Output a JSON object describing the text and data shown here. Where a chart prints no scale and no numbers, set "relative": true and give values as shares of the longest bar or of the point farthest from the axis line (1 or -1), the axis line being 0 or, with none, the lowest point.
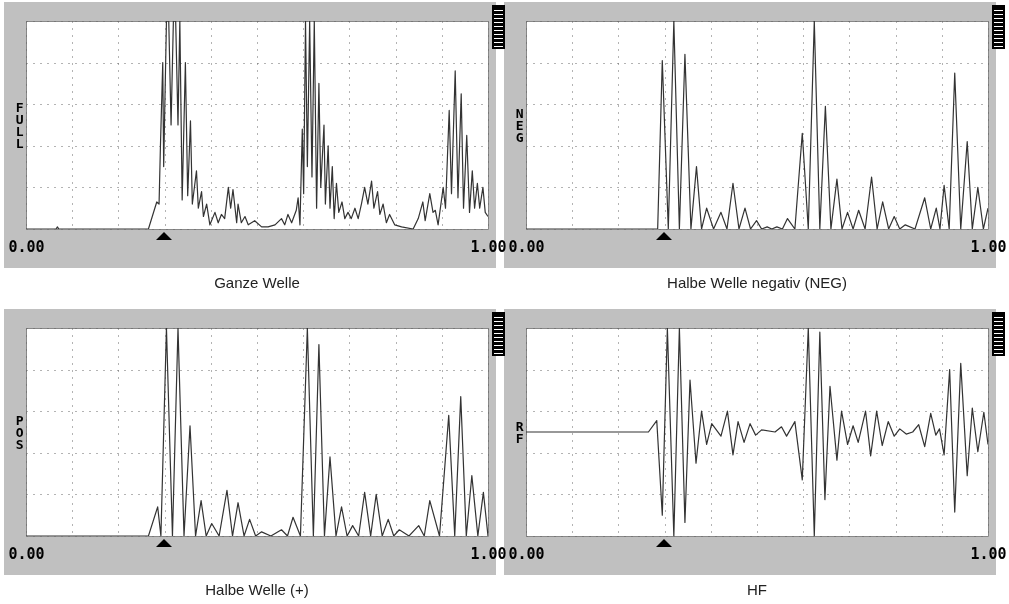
{
  "chart_data": [
    {
      "type": "line",
      "title": "Ganze Welle",
      "ylabel": "FULL",
      "relative": true,
      "grid": true,
      "color": "#333333",
      "xlim": [
        0,
        1
      ],
      "xticks": [
        {
          "value": 0,
          "label": "0.00"
        },
        {
          "value": 0.1,
          "label": null
        },
        {
          "value": 0.2,
          "label": null
        },
        {
          "value": 0.3,
          "label": null
        },
        {
          "value": 0.4,
          "label": null
        },
        {
          "value": 0.5,
          "label": null
        },
        {
          "value": 0.6,
          "label": null
        },
        {
          "value": 0.7,
          "label": null
        },
        {
          "value": 0.8,
          "label": null
        },
        {
          "value": 0.9,
          "label": null
        },
        {
          "value": 1,
          "label": "1.00"
        }
      ],
      "x": [
        0,
        0.065,
        0.068,
        0.071,
        0.265,
        0.283,
        0.288,
        0.291,
        0.296,
        0.298,
        0.304,
        0.309,
        0.314,
        0.319,
        0.324,
        0.329,
        0.333,
        0.338,
        0.345,
        0.35,
        0.356,
        0.36,
        0.369,
        0.373,
        0.38,
        0.384,
        0.391,
        0.398,
        0.409,
        0.416,
        0.423,
        0.43,
        0.438,
        0.443,
        0.448,
        0.456,
        0.459,
        0.466,
        0.474,
        0.481,
        0.495,
        0.51,
        0.524,
        0.539,
        0.553,
        0.56,
        0.567,
        0.575,
        0.585,
        0.589,
        0.593,
        0.598,
        0.601,
        0.605,
        0.609,
        0.614,
        0.619,
        0.624,
        0.629,
        0.634,
        0.638,
        0.645,
        0.648,
        0.654,
        0.658,
        0.663,
        0.667,
        0.672,
        0.677,
        0.684,
        0.69,
        0.697,
        0.704,
        0.712,
        0.719,
        0.726,
        0.733,
        0.74,
        0.748,
        0.753,
        0.761,
        0.766,
        0.773,
        0.78,
        0.787,
        0.798,
        0.813,
        0.838,
        0.849,
        0.859,
        0.864,
        0.874,
        0.881,
        0.886,
        0.892,
        0.903,
        0.908,
        0.916,
        0.921,
        0.929,
        0.935,
        0.942,
        0.947,
        0.954,
        0.96,
        0.966,
        0.971,
        0.977,
        0.982,
        0.989,
        0.994,
        1.0
      ],
      "values": [
        0,
        0,
        0.01,
        0,
        0,
        0.13,
        0.12,
        0.4,
        0.8,
        0.3,
        1,
        1,
        0.5,
        1,
        1,
        0.5,
        1,
        0.14,
        0.8,
        0.16,
        0.52,
        0.12,
        0.28,
        0.1,
        0.18,
        0.06,
        0.12,
        0.02,
        0.08,
        0.03,
        0.07,
        0.05,
        0.2,
        0.1,
        0.19,
        0.03,
        0.12,
        0.03,
        0.06,
        0.02,
        0.04,
        0.01,
        0.01,
        0.02,
        0.05,
        0.02,
        0.07,
        0.03,
        0.09,
        0.15,
        0.02,
        0.48,
        0.17,
        1,
        0.3,
        1,
        0.25,
        1,
        0.1,
        0.7,
        0.2,
        0.5,
        0.12,
        0.4,
        0.1,
        0.3,
        0.05,
        0.22,
        0.08,
        0.13,
        0.05,
        0.08,
        0.05,
        0.1,
        0.05,
        0.12,
        0.2,
        0.12,
        0.23,
        0.1,
        0.18,
        0.07,
        0.12,
        0.03,
        0.07,
        0.02,
        0.01,
        0,
        0.05,
        0.13,
        0.04,
        0.17,
        0.08,
        0.09,
        0.02,
        0.2,
        0.1,
        0.57,
        0.17,
        0.76,
        0.15,
        0.65,
        0.1,
        0.45,
        0.08,
        0.28,
        0.1,
        0.22,
        0.1,
        0.2,
        0.08,
        0.06
      ]
    },
    {
      "type": "line",
      "title": "Halbe Welle negativ (NEG)",
      "ylabel": "NEG",
      "relative": true,
      "grid": true,
      "color": "#333333",
      "xlim": [
        0,
        1
      ],
      "xticks": [
        {
          "value": 0,
          "label": "0.00"
        },
        {
          "value": 0.1,
          "label": null
        },
        {
          "value": 0.2,
          "label": null
        },
        {
          "value": 0.3,
          "label": null
        },
        {
          "value": 0.4,
          "label": null
        },
        {
          "value": 0.5,
          "label": null
        },
        {
          "value": 0.6,
          "label": null
        },
        {
          "value": 0.7,
          "label": null
        },
        {
          "value": 0.8,
          "label": null
        },
        {
          "value": 0.9,
          "label": null
        },
        {
          "value": 1,
          "label": "1.00"
        }
      ],
      "x": [
        0,
        0.285,
        0.295,
        0.308,
        0.32,
        0.332,
        0.344,
        0.357,
        0.369,
        0.38,
        0.391,
        0.406,
        0.422,
        0.435,
        0.448,
        0.461,
        0.474,
        0.486,
        0.499,
        0.51,
        0.522,
        0.532,
        0.543,
        0.555,
        0.566,
        0.582,
        0.598,
        0.611,
        0.624,
        0.636,
        0.648,
        0.66,
        0.673,
        0.684,
        0.696,
        0.708,
        0.72,
        0.734,
        0.748,
        0.76,
        0.772,
        0.785,
        0.797,
        0.809,
        0.821,
        0.842,
        0.863,
        0.876,
        0.888,
        0.896,
        0.905,
        0.916,
        0.928,
        0.941,
        0.955,
        0.966,
        0.978,
        0.99,
        1.0
      ],
      "values": [
        0,
        0,
        0.81,
        0,
        1,
        0,
        0.84,
        0,
        0.3,
        0,
        0.1,
        0,
        0.08,
        0,
        0.22,
        0,
        0.1,
        0,
        0.04,
        0,
        0.01,
        0,
        0.01,
        0,
        0.05,
        0,
        0.46,
        0,
        1,
        0,
        0.59,
        0,
        0.24,
        0,
        0.08,
        0,
        0.09,
        0,
        0.25,
        0,
        0.13,
        0,
        0.06,
        0,
        0.02,
        0,
        0.15,
        0,
        0.1,
        0,
        0.21,
        0,
        0.75,
        0,
        0.42,
        0,
        0.2,
        0,
        0.1
      ]
    },
    {
      "type": "line",
      "title": "Halbe Welle (+)",
      "ylabel": "POS",
      "relative": true,
      "grid": true,
      "color": "#333333",
      "xlim": [
        0,
        1
      ],
      "xticks": [
        {
          "value": 0,
          "label": "0.00"
        },
        {
          "value": 0.1,
          "label": null
        },
        {
          "value": 0.2,
          "label": null
        },
        {
          "value": 0.3,
          "label": null
        },
        {
          "value": 0.4,
          "label": null
        },
        {
          "value": 0.5,
          "label": null
        },
        {
          "value": 0.6,
          "label": null
        },
        {
          "value": 0.7,
          "label": null
        },
        {
          "value": 0.8,
          "label": null
        },
        {
          "value": 0.9,
          "label": null
        },
        {
          "value": 1,
          "label": "1.00"
        }
      ],
      "x": [
        0,
        0.265,
        0.285,
        0.292,
        0.304,
        0.317,
        0.329,
        0.342,
        0.355,
        0.367,
        0.379,
        0.39,
        0.402,
        0.418,
        0.435,
        0.447,
        0.459,
        0.472,
        0.484,
        0.497,
        0.51,
        0.53,
        0.553,
        0.566,
        0.578,
        0.594,
        0.609,
        0.622,
        0.634,
        0.646,
        0.658,
        0.671,
        0.683,
        0.695,
        0.707,
        0.72,
        0.733,
        0.746,
        0.758,
        0.771,
        0.784,
        0.796,
        0.808,
        0.829,
        0.85,
        0.862,
        0.874,
        0.895,
        0.915,
        0.928,
        0.941,
        0.953,
        0.965,
        0.978,
        0.99,
        1.0
      ],
      "values": [
        0,
        0,
        0.14,
        0,
        1,
        0,
        1,
        0,
        0.53,
        0,
        0.17,
        0,
        0.06,
        0,
        0.22,
        0,
        0.16,
        0,
        0.08,
        0,
        0.02,
        0,
        0.03,
        0,
        0.09,
        0,
        1,
        0,
        0.92,
        0,
        0.38,
        0,
        0.14,
        0,
        0.05,
        0,
        0.21,
        0,
        0.2,
        0,
        0.08,
        0,
        0.03,
        0,
        0.05,
        0,
        0.17,
        0,
        0.58,
        0,
        0.67,
        0,
        0.29,
        0,
        0.21,
        0
      ]
    },
    {
      "type": "line",
      "title": "HF",
      "ylabel": "RF",
      "relative": true,
      "grid": true,
      "color": "#333333",
      "xlim": [
        0,
        1
      ],
      "xticks": [
        {
          "value": 0,
          "label": "0.00"
        },
        {
          "value": 0.1,
          "label": null
        },
        {
          "value": 0.2,
          "label": null
        },
        {
          "value": 0.3,
          "label": null
        },
        {
          "value": 0.4,
          "label": null
        },
        {
          "value": 0.5,
          "label": null
        },
        {
          "value": 0.6,
          "label": null
        },
        {
          "value": 0.7,
          "label": null
        },
        {
          "value": 0.8,
          "label": null
        },
        {
          "value": 0.9,
          "label": null
        },
        {
          "value": 1,
          "label": "1.00"
        }
      ],
      "x": [
        0,
        0.265,
        0.283,
        0.295,
        0.306,
        0.32,
        0.332,
        0.344,
        0.355,
        0.368,
        0.38,
        0.391,
        0.402,
        0.422,
        0.436,
        0.448,
        0.459,
        0.472,
        0.485,
        0.497,
        0.51,
        0.539,
        0.553,
        0.564,
        0.582,
        0.598,
        0.611,
        0.624,
        0.636,
        0.647,
        0.658,
        0.673,
        0.683,
        0.696,
        0.708,
        0.719,
        0.735,
        0.746,
        0.759,
        0.771,
        0.784,
        0.797,
        0.809,
        0.823,
        0.837,
        0.85,
        0.863,
        0.876,
        0.887,
        0.895,
        0.905,
        0.917,
        0.928,
        0.941,
        0.955,
        0.966,
        0.978,
        0.991,
        1.0
      ],
      "values": [
        0.5,
        0.5,
        0.555,
        0.1,
        1,
        0,
        1,
        0.065,
        0.75,
        0.35,
        0.6,
        0.44,
        0.54,
        0.48,
        0.6,
        0.39,
        0.55,
        0.45,
        0.54,
        0.485,
        0.51,
        0.5,
        0.525,
        0.48,
        0.55,
        0.27,
        1,
        0,
        0.98,
        0.175,
        0.72,
        0.365,
        0.6,
        0.44,
        0.53,
        0.45,
        0.6,
        0.385,
        0.6,
        0.435,
        0.55,
        0.48,
        0.515,
        0.49,
        0.5,
        0.535,
        0.43,
        0.59,
        0.485,
        0.515,
        0.39,
        0.8,
        0.115,
        0.83,
        0.29,
        0.615,
        0.405,
        0.595,
        0.44
      ]
    }
  ]
}
